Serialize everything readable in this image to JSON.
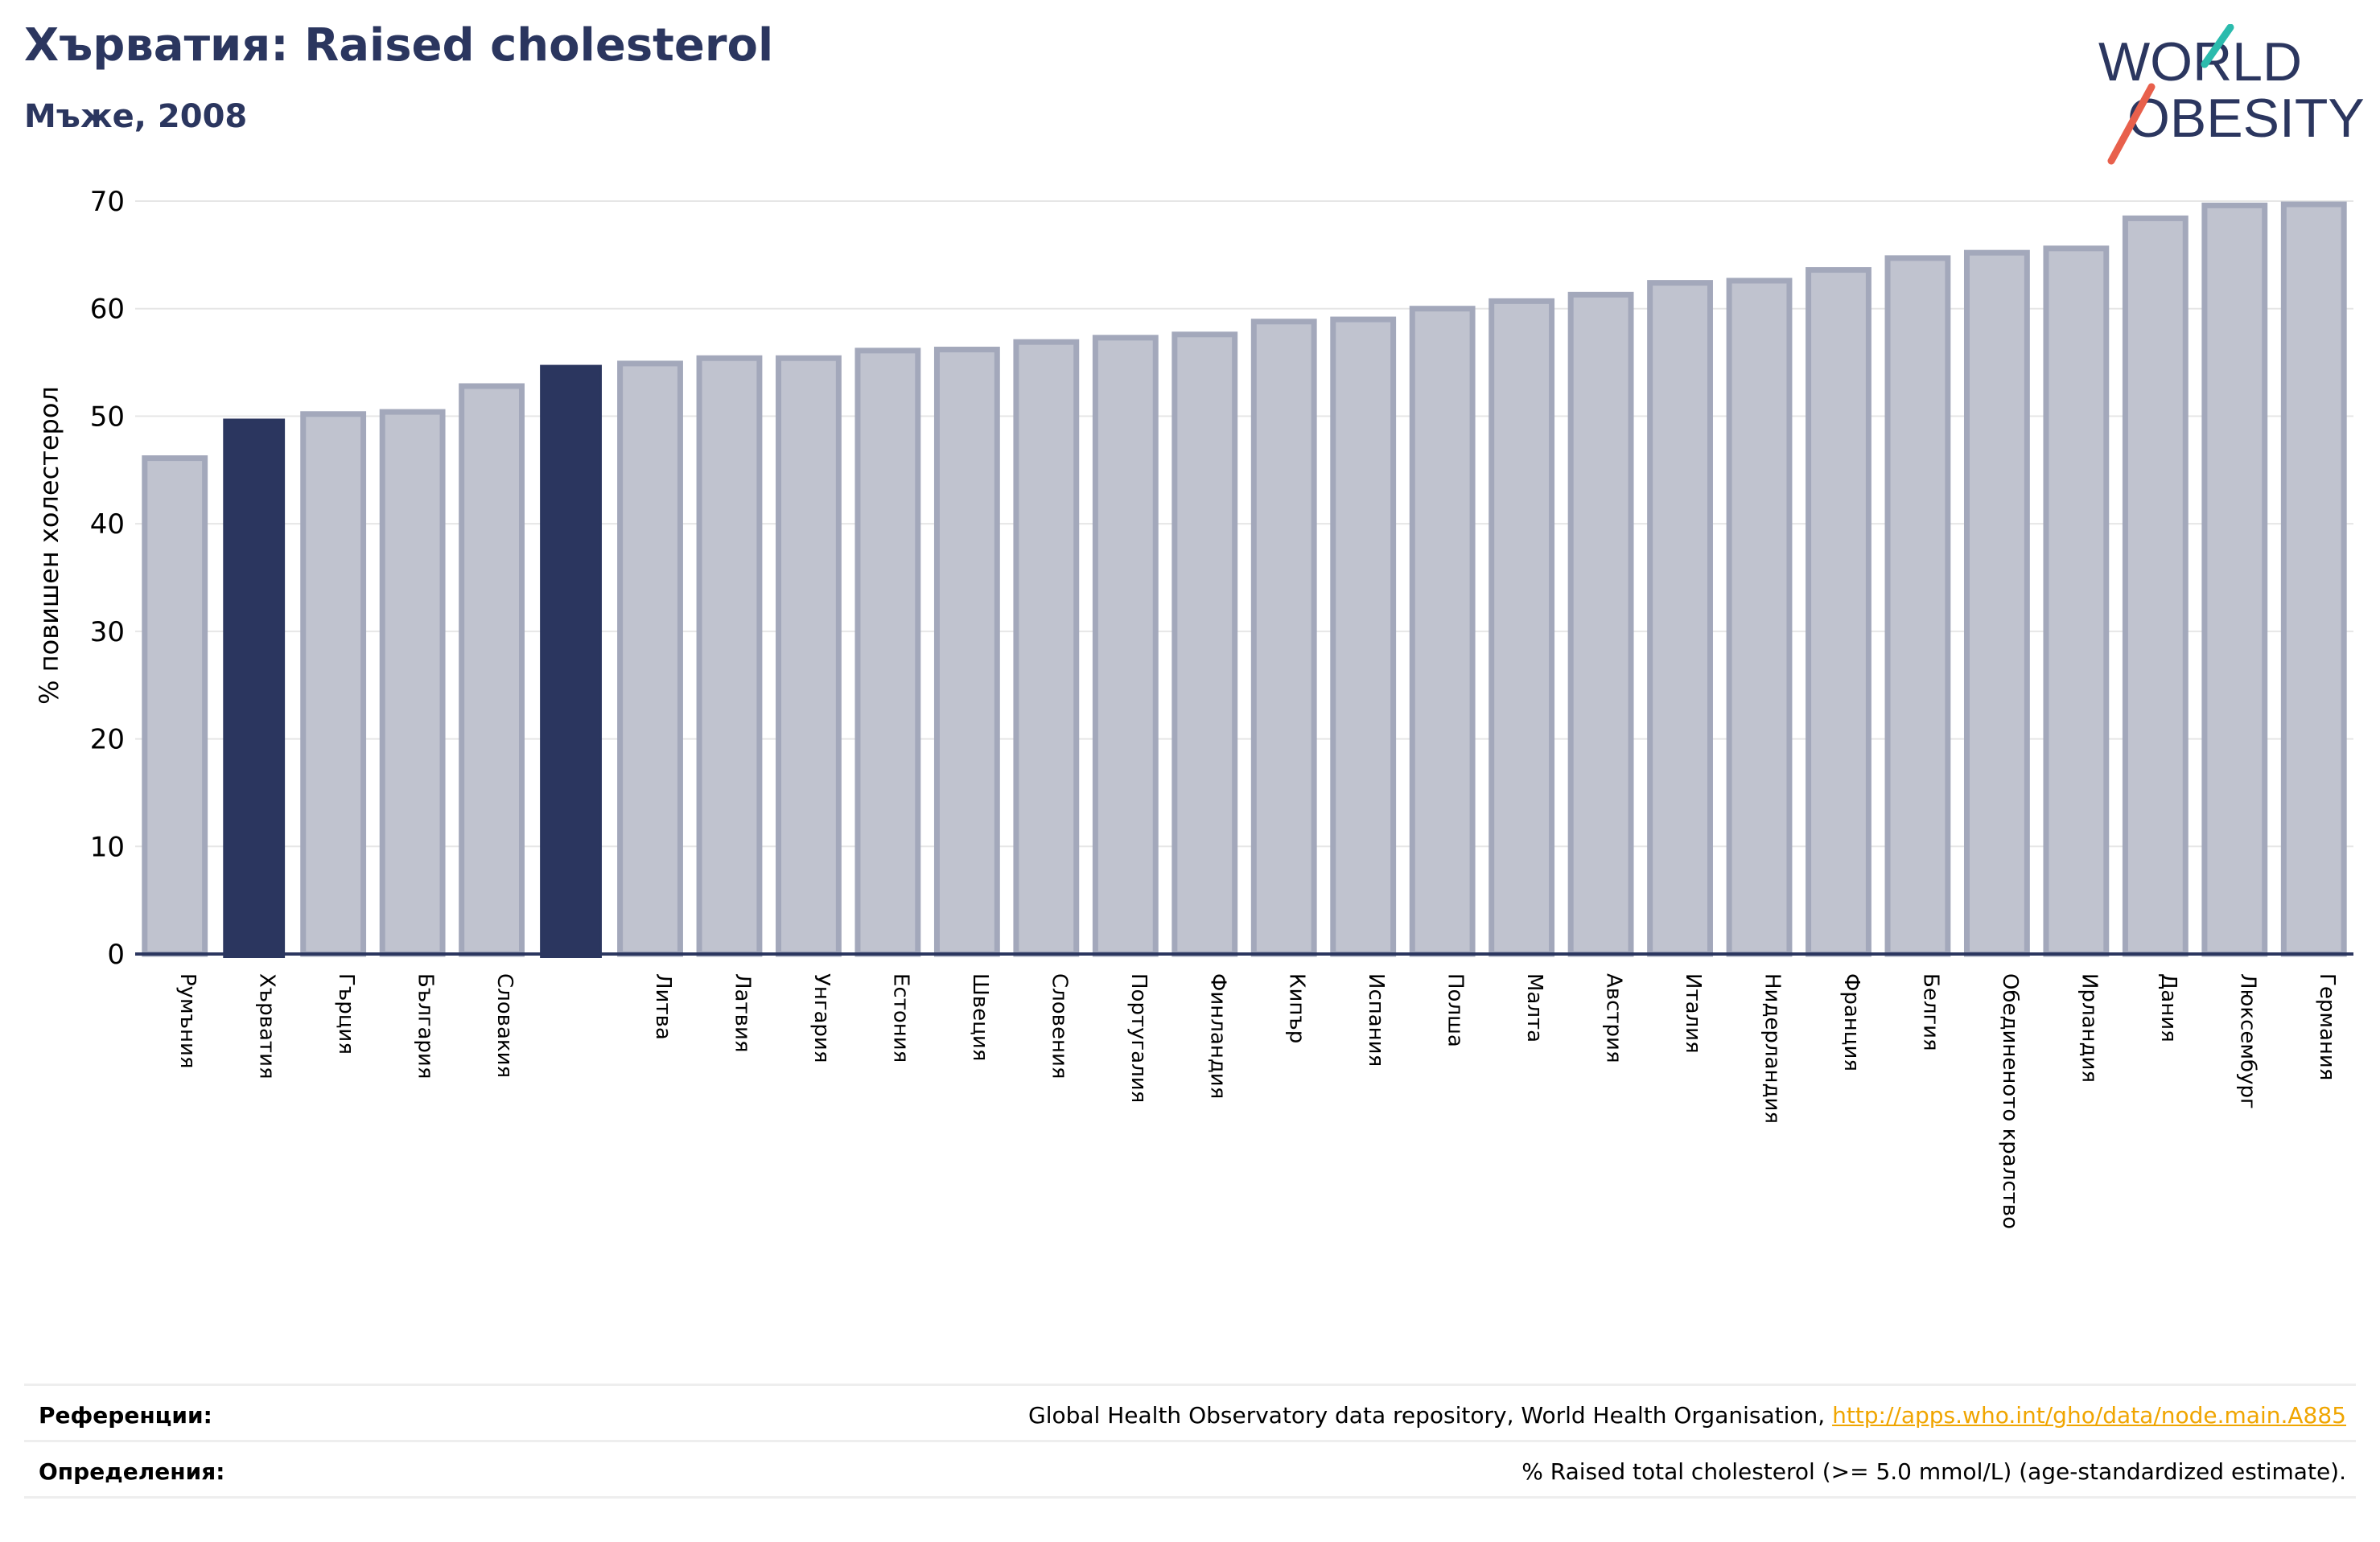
{
  "header": {
    "title": "Хърватия: Raised cholesterol",
    "subtitle": "Мъже, 2008"
  },
  "logo": {
    "line1": "WORLD",
    "line2": "OBESITY",
    "accent_teal": "#2bbbad",
    "accent_red": "#e8604c",
    "text_color": "#2b365f"
  },
  "colors": {
    "bar_default": "#c0c3cf",
    "bar_default_stroke": "#a3a8bb",
    "bar_highlight": "#2b365f",
    "grid": "#e6e6e6",
    "axis": "#2b365f"
  },
  "chart_data": {
    "type": "bar",
    "ylabel": "% повишен холестерол",
    "ylim": [
      0,
      70
    ],
    "yticks": [
      0,
      10,
      20,
      30,
      40,
      50,
      60,
      70
    ],
    "grid": true,
    "categories": [
      "Румъния",
      "Хърватия",
      "Гърция",
      "България",
      "Словакия",
      "",
      "Литва",
      "Латвия",
      "Унгария",
      "Естония",
      "Швеция",
      "Словения",
      "Португалия",
      "Финландия",
      "Кипър",
      "Испания",
      "Полша",
      "Малта",
      "Австрия",
      "Италия",
      "Нидерландия",
      "Франция",
      "Белгия",
      "Обединеното кралство",
      "Ирландия",
      "Дания",
      "Люксембург",
      "Германия"
    ],
    "values": [
      46.1,
      49.7,
      50.2,
      50.4,
      52.8,
      54.7,
      54.9,
      55.4,
      55.4,
      56.1,
      56.2,
      56.9,
      57.3,
      57.6,
      58.8,
      59.0,
      60.0,
      60.7,
      61.3,
      62.4,
      62.6,
      63.6,
      64.7,
      65.2,
      65.6,
      68.4,
      69.6,
      69.7
    ],
    "highlighted": [
      false,
      true,
      false,
      false,
      false,
      true,
      false,
      false,
      false,
      false,
      false,
      false,
      false,
      false,
      false,
      false,
      false,
      false,
      false,
      false,
      false,
      false,
      false,
      false,
      false,
      false,
      false,
      false
    ]
  },
  "footer": {
    "references_label": "Референции:",
    "references_text": "Global Health Observatory data repository, World Health Organisation, ",
    "references_link": "http://apps.who.int/gho/data/node.main.A885",
    "definitions_label": "Определения:",
    "definitions_text": "% Raised total cholesterol (>= 5.0 mmol/L) (age-standardized estimate)."
  }
}
